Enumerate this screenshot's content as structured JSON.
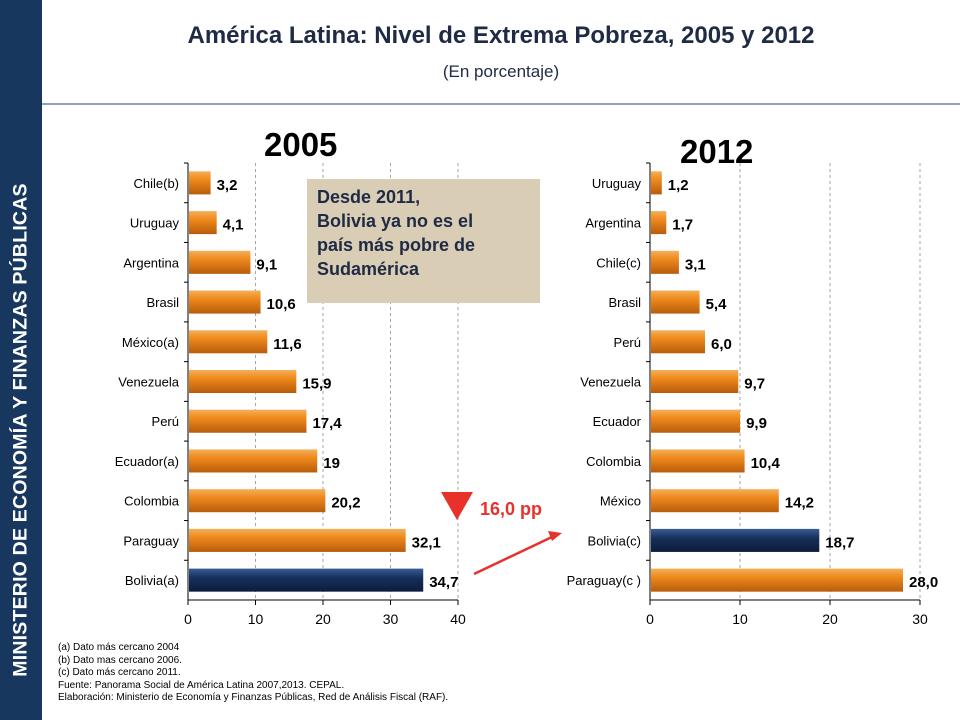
{
  "sidebar": {
    "text": "MINISTERIO DE ECONOMÍA Y FINANZAS PÚBLICAS"
  },
  "header": {
    "title": "América Latina: Nivel de Extrema Pobreza, 2005 y 2012",
    "subtitle": "(En porcentaje)"
  },
  "callout": {
    "lines": [
      "Desde 2011,",
      "Bolivia ya no es el",
      "país más pobre de",
      "Sudamérica"
    ]
  },
  "annotation": {
    "label": "16,0 pp",
    "color": "#e8312a"
  },
  "colors": {
    "bar": "#f08a1c",
    "bar_highlight": "#16305c",
    "callout_bg": "#d9cdb6",
    "sidebar": "#17375e"
  },
  "footnotes": [
    "(a)   Dato más cercano 2004",
    "(b)   Dato mas cercano 2006.",
    "(c)   Dato más cercano 2011.",
    "Fuente:  Panorama Social de América Latina 2007,2013. CEPAL.",
    "Elaboración: Ministerio de Economía y Finanzas Públicas, Red de Análisis Fiscal (RAF)."
  ],
  "chart_data": [
    {
      "type": "bar",
      "orientation": "horizontal",
      "title": "2005",
      "categories": [
        "Chile(b)",
        "Uruguay",
        "Argentina",
        "Brasil",
        "México(a)",
        "Venezuela",
        "Perú",
        "Ecuador(a)",
        "Colombia",
        "Paraguay",
        "Bolivia(a)"
      ],
      "values": [
        3.2,
        4.1,
        9.1,
        10.6,
        11.6,
        15.9,
        17.4,
        19,
        20.2,
        32.1,
        34.7
      ],
      "value_labels": [
        "3,2",
        "4,1",
        "9,1",
        "10,6",
        "11,6",
        "15,9",
        "17,4",
        "19",
        "20,2",
        "32,1",
        "34,7"
      ],
      "highlight": "Bolivia(a)",
      "xlim": [
        0,
        40
      ],
      "xticks": [
        "0",
        "10",
        "20",
        "30",
        "40"
      ],
      "grid": "vertical dashed"
    },
    {
      "type": "bar",
      "orientation": "horizontal",
      "title": "2012",
      "categories": [
        "Uruguay",
        "Argentina",
        "Chile(c)",
        "Brasil",
        "Perú",
        "Venezuela",
        "Ecuador",
        "Colombia",
        "México",
        "Bolivia(c)",
        "Paraguay(c )"
      ],
      "values": [
        1.2,
        1.7,
        3.1,
        5.4,
        6.0,
        9.7,
        9.9,
        10.4,
        14.2,
        18.7,
        28.0
      ],
      "value_labels": [
        "1,2",
        "1,7",
        "3,1",
        "5,4",
        "6,0",
        "9,7",
        "9,9",
        "10,4",
        "14,2",
        "18,7",
        "28,0"
      ],
      "highlight": "Bolivia(c)",
      "xlim": [
        0,
        30
      ],
      "xticks": [
        "0",
        "10",
        "20",
        "30"
      ],
      "grid": "vertical dashed"
    }
  ]
}
